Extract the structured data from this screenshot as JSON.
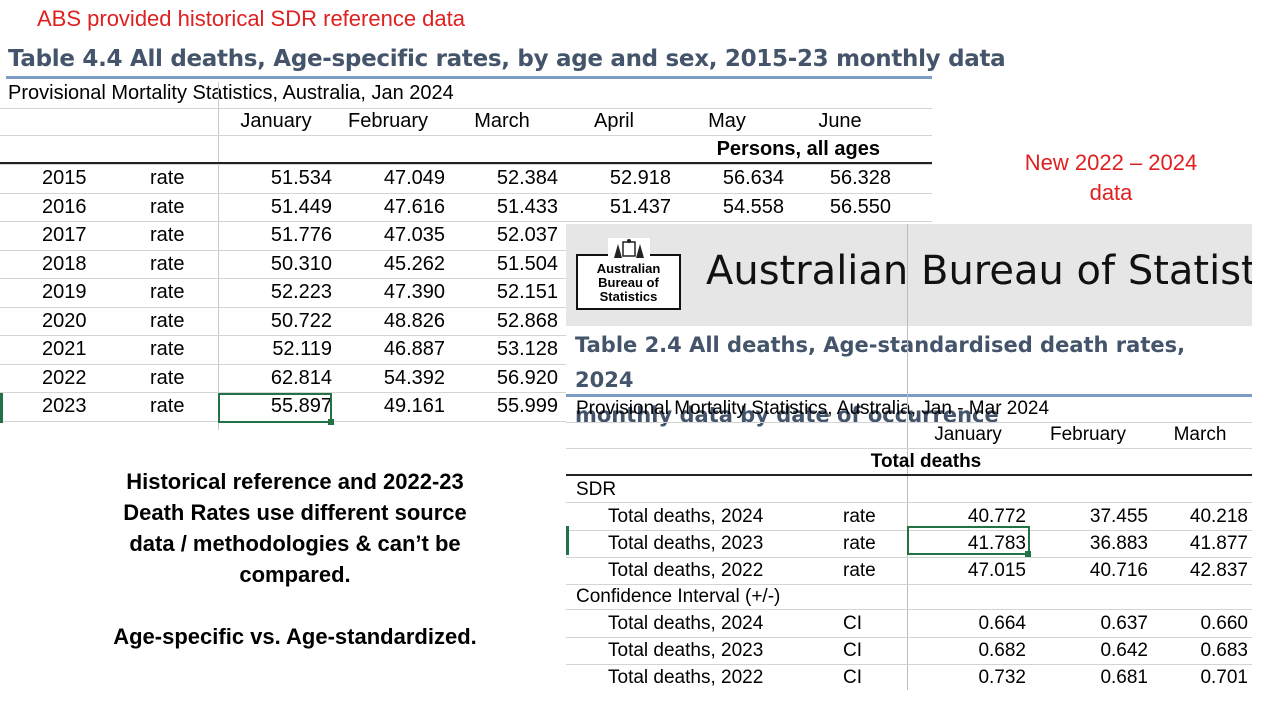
{
  "left_caption": "ABS provided historical SDR reference data",
  "left_table": {
    "title": "Table 4.4 All deaths, Age-specific rates, by age and sex, 2015-23 monthly data",
    "subtitle": "Provisional Mortality Statistics, Australia, Jan 2024",
    "months": [
      "January",
      "February",
      "March",
      "April",
      "May",
      "June"
    ],
    "section": "Persons, all ages",
    "rows": [
      {
        "year": "2015",
        "label": "rate",
        "values": [
          "51.534",
          "47.049",
          "52.384",
          "52.918",
          "56.634",
          "56.328"
        ]
      },
      {
        "year": "2016",
        "label": "rate",
        "values": [
          "51.449",
          "47.616",
          "51.433",
          "51.437",
          "54.558",
          "56.550"
        ]
      },
      {
        "year": "2017",
        "label": "rate",
        "values": [
          "51.776",
          "47.035",
          "52.037"
        ]
      },
      {
        "year": "2018",
        "label": "rate",
        "values": [
          "50.310",
          "45.262",
          "51.504"
        ]
      },
      {
        "year": "2019",
        "label": "rate",
        "values": [
          "52.223",
          "47.390",
          "52.151"
        ]
      },
      {
        "year": "2020",
        "label": "rate",
        "values": [
          "50.722",
          "48.826",
          "52.868"
        ]
      },
      {
        "year": "2021",
        "label": "rate",
        "values": [
          "52.119",
          "46.887",
          "53.128"
        ]
      },
      {
        "year": "2022",
        "label": "rate",
        "values": [
          "62.814",
          "54.392",
          "56.920"
        ]
      },
      {
        "year": "2023",
        "label": "rate",
        "values": [
          "55.897",
          "49.161",
          "55.999"
        ]
      }
    ]
  },
  "right_caption_line1": "New 2022 – 2024",
  "right_caption_line2": "data",
  "note": {
    "line1": "Historical reference and 2022-23",
    "line2": "Death Rates use different source",
    "line3": "data / methodologies & can’t be",
    "line4": "compared.",
    "line5": "Age-specific vs. Age-standardized."
  },
  "right_table": {
    "logo_line1": "Australian",
    "logo_line2": "Bureau of",
    "logo_line3": "Statistics",
    "org": "Australian Bureau of Statist",
    "title_line1": "Table 2.4 All deaths, Age-standardised death rates, 2024",
    "title_line2": "monthly data by date of occurrence",
    "subtitle": "Provisional Mortality Statistics, Australia, Jan - Mar 2024",
    "months": [
      "January",
      "February",
      "March"
    ],
    "section": "Total deaths",
    "sdr_label": "SDR",
    "sdr_rows": [
      {
        "label": "Total deaths, 2024",
        "type": "rate",
        "values": [
          "40.772",
          "37.455",
          "40.218"
        ]
      },
      {
        "label": "Total deaths, 2023",
        "type": "rate",
        "values": [
          "41.783",
          "36.883",
          "41.877"
        ]
      },
      {
        "label": "Total deaths, 2022",
        "type": "rate",
        "values": [
          "47.015",
          "40.716",
          "42.837"
        ]
      }
    ],
    "ci_label": "Confidence Interval (+/-)",
    "ci_rows": [
      {
        "label": "Total deaths, 2024",
        "type": "CI",
        "values": [
          "0.664",
          "0.637",
          "0.660"
        ]
      },
      {
        "label": "Total deaths, 2023",
        "type": "CI",
        "values": [
          "0.682",
          "0.642",
          "0.683"
        ]
      },
      {
        "label": "Total deaths, 2022",
        "type": "CI",
        "values": [
          "0.732",
          "0.681",
          "0.701"
        ]
      }
    ]
  }
}
